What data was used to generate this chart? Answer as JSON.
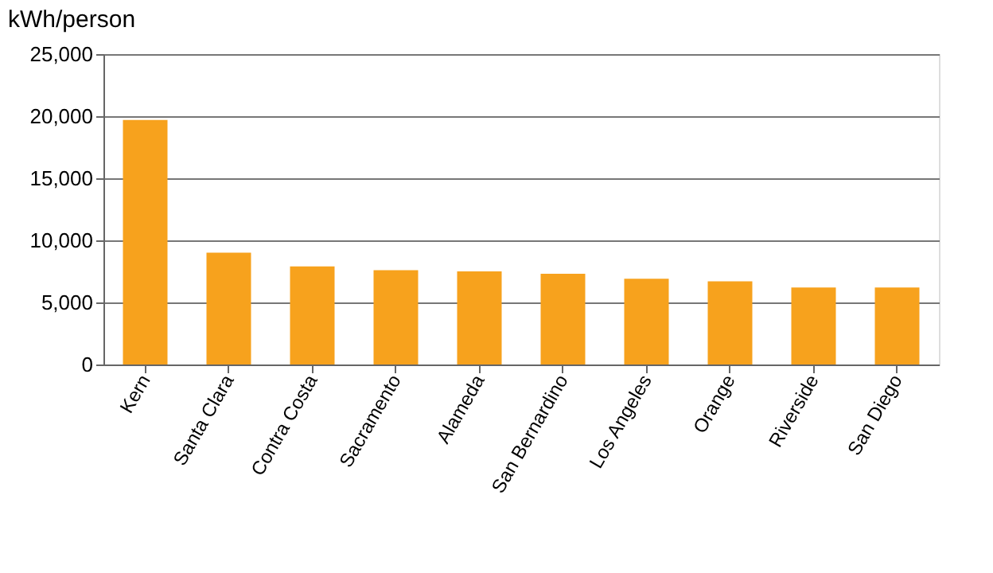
{
  "chart_data": {
    "type": "bar",
    "ylabel": "kWh/person",
    "categories": [
      "Kern",
      "Santa Clara",
      "Contra Costa",
      "Sacramento",
      "Alameda",
      "San Bernardino",
      "Los Angeles",
      "Orange",
      "Riverside",
      "San Diego"
    ],
    "values": [
      19700,
      9000,
      7900,
      7600,
      7500,
      7300,
      6900,
      6700,
      6200,
      6200
    ],
    "color": "#f7a21d",
    "ylim": [
      0,
      25000
    ],
    "yticks": [
      0,
      {
        "value": 5000,
        "label": "5,000"
      },
      {
        "value": 10000,
        "label": "10,000"
      },
      {
        "value": 15000,
        "label": "15,000"
      },
      {
        "value": 20000,
        "label": "20,000"
      },
      {
        "value": 25000,
        "label": "25,000"
      }
    ],
    "grid": "y"
  }
}
